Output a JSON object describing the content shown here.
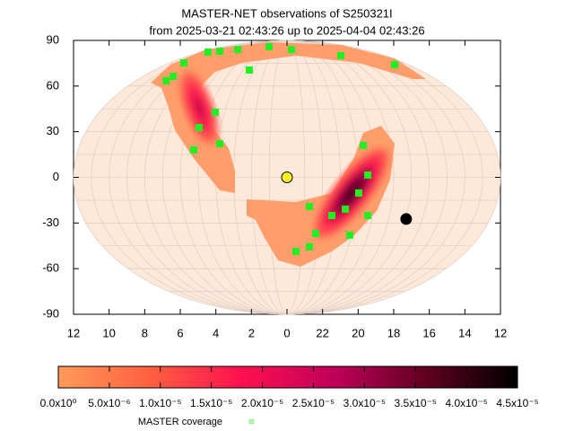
{
  "chart_data": {
    "type": "skymap",
    "title": "MASTER-NET observations of S250321I",
    "subtitle": "from 2025-03-21 02:43:26 up to 2025-04-04 02:43:26",
    "xlim": [
      12,
      -12
    ],
    "ylim": [
      -90,
      90
    ],
    "xticks": [
      12,
      10,
      8,
      6,
      4,
      2,
      0,
      {
        "value": -2,
        "label": "22"
      },
      {
        "value": -4,
        "label": "20"
      },
      {
        "value": -6,
        "label": "18"
      },
      {
        "value": -8,
        "label": "16"
      },
      {
        "value": -10,
        "label": "14"
      },
      {
        "value": -12,
        "label": "12"
      }
    ],
    "yticks": [
      -90,
      -60,
      -30,
      0,
      30,
      60,
      90
    ],
    "colorbar": {
      "lim": [
        0,
        4.5e-05
      ],
      "colors": [
        "#ff9a5a",
        "#ff6040",
        "#ff1050",
        "#c0005a",
        "#600020",
        "#000000"
      ],
      "ticks": [
        {
          "value": 0,
          "label": "0.0x10⁰"
        },
        {
          "value": 5e-06,
          "label": "5.0x10⁻⁶"
        },
        {
          "value": 1e-05,
          "label": "1.0x10⁻⁵"
        },
        {
          "value": 1.5e-05,
          "label": "1.5x10⁻⁵"
        },
        {
          "value": 2e-05,
          "label": "2.0x10⁻⁵"
        },
        {
          "value": 2.5e-05,
          "label": "2.5x10⁻⁵"
        },
        {
          "value": 3e-05,
          "label": "3.0x10⁻⁵"
        },
        {
          "value": 3.5e-05,
          "label": "3.5x10⁻⁵"
        },
        {
          "value": 4e-05,
          "label": "4.0x10⁻⁵"
        },
        {
          "value": 4.5e-05,
          "label": "4.5x10⁻⁵"
        }
      ]
    },
    "series": [
      {
        "name": "MASTER coverage",
        "color": "#22ee22",
        "x": [
          4.44,
          3.78,
          5.8,
          6.8,
          6.4,
          2.12,
          4.03,
          4.94,
          3.78,
          5.24,
          -4.29,
          -4.54,
          -4.03,
          -3.28,
          -2.52,
          -1.61,
          -3.53,
          -1.26,
          -0.5,
          -1.26,
          -4.54,
          1.01,
          -0.25,
          -3.03,
          -6.05,
          2.77
        ],
        "y": [
          82.3,
          82.9,
          75.2,
          63.5,
          66.4,
          70.5,
          42.8,
          32.7,
          22.1,
          18,
          20.9,
          1.5,
          -10.3,
          -20.9,
          -25.1,
          -36.9,
          -38,
          -45.7,
          -48.7,
          -19.2,
          -25.1,
          85.8,
          84,
          80,
          74,
          84
        ]
      }
    ],
    "points": [
      {
        "x": 0,
        "y": 0,
        "color": "#ffee22"
      },
      {
        "x": -6.7,
        "y": -27.4,
        "color": "#000000"
      }
    ]
  }
}
